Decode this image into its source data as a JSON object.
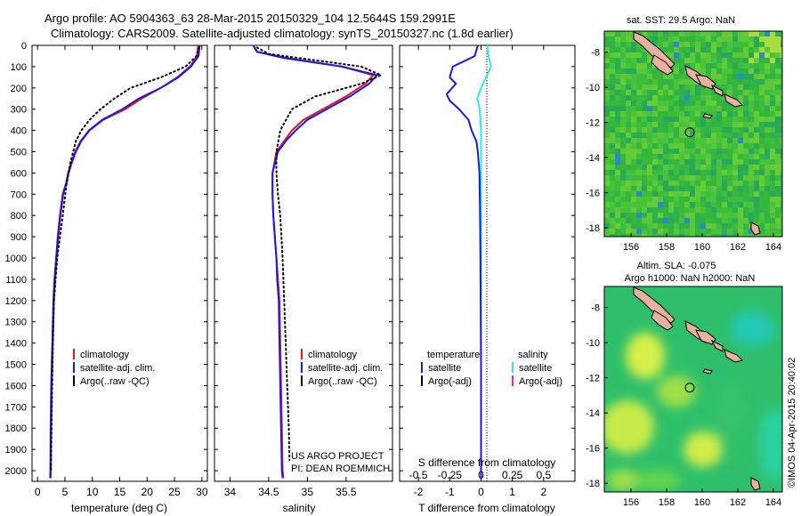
{
  "header": {
    "line1": "Argo profile: AO 5904363_63 28-Mar-2015 20150329_104 12.5644S 159.2991E",
    "line2": "Climatology: CARS2009. Satellite-adjusted climatology: synTS_20150327.nc (1.8d earlier)"
  },
  "credit": {
    "project": "US ARGO PROJECT",
    "pi": "PI: DEAN ROEMMICH",
    "imos": "©IMOS 04-Apr-2015 20:40:02"
  },
  "colors": {
    "climatology": "#e8151b",
    "satellite": "#1a1ae0",
    "argo": "#000000",
    "salinity_satellite": "#33e8e8",
    "salinity_argo": "#e020e0",
    "land": "#e8b0a0"
  },
  "chart_data": [
    {
      "type": "line",
      "id": "temperature",
      "title": "",
      "xlabel": "temperature (deg C)",
      "ylabel": "",
      "xlim": [
        -1,
        31
      ],
      "ylim": [
        2050,
        0
      ],
      "xticks": [
        "0",
        "5",
        "10",
        "15",
        "20",
        "25",
        "30"
      ],
      "yticks": [
        "0",
        "100",
        "200",
        "300",
        "400",
        "500",
        "600",
        "700",
        "800",
        "900",
        "1000",
        "1100",
        "1200",
        "1300",
        "1400",
        "1500",
        "1600",
        "1700",
        "1800",
        "1900",
        "2000"
      ],
      "legend": {
        "position": "bottom-left",
        "entries": [
          "climatology",
          "satellite-adj. clim.",
          "Argo(..raw -QC)"
        ]
      },
      "series": [
        {
          "name": "climatology",
          "x": [
            29.3,
            29.1,
            27.8,
            25.5,
            22.5,
            19,
            16,
            12,
            9.5,
            8,
            7,
            6.3,
            5.7,
            5.3,
            4.7,
            4.2,
            3.8,
            3.5,
            3.2,
            3,
            2.8,
            2.6,
            2.5,
            2.45,
            2.4
          ],
          "y": [
            0,
            50,
            100,
            150,
            200,
            250,
            300,
            350,
            400,
            450,
            500,
            550,
            600,
            650,
            700,
            800,
            900,
            1000,
            1100,
            1200,
            1400,
            1600,
            1800,
            2000,
            2035
          ]
        },
        {
          "name": "satellite-adj. clim.",
          "x": [
            29.6,
            29.4,
            28,
            25.7,
            22.5,
            18.5,
            15.5,
            11.8,
            9.4,
            7.9,
            6.9,
            6.2,
            5.6,
            5.2,
            4.6,
            4.1,
            3.7,
            3.4,
            3.1,
            2.9,
            2.7,
            2.5,
            2.4,
            2.35,
            2.3
          ],
          "y": [
            0,
            50,
            100,
            150,
            200,
            250,
            300,
            350,
            400,
            450,
            500,
            550,
            600,
            650,
            700,
            800,
            900,
            1000,
            1100,
            1200,
            1400,
            1600,
            1800,
            2000,
            2035
          ]
        },
        {
          "name": "Argo(..raw -QC)",
          "style": "dotted",
          "x": [
            29.5,
            29,
            27,
            22.5,
            17,
            14,
            11.5,
            9.5,
            8,
            7,
            6,
            5.3,
            4.6,
            4.1,
            3.6,
            3.3,
            3,
            2.8,
            2.6,
            2.45
          ],
          "y": [
            10,
            50,
            100,
            150,
            200,
            250,
            300,
            350,
            400,
            450,
            550,
            650,
            800,
            900,
            1000,
            1100,
            1200,
            1400,
            1700,
            2000
          ]
        }
      ]
    },
    {
      "type": "line",
      "id": "salinity",
      "title": "",
      "xlabel": "salinity",
      "ylabel": "",
      "xlim": [
        33.8,
        36.1
      ],
      "ylim": [
        2050,
        0
      ],
      "xticks": [
        "34",
        "34.5",
        "35",
        "35.5"
      ],
      "legend": {
        "position": "bottom-left",
        "entries": [
          "climatology",
          "satellite-adj. clim.",
          "Argo(..raw -QC)"
        ]
      },
      "series": [
        {
          "name": "climatology",
          "x": [
            34.3,
            34.35,
            34.75,
            35.45,
            35.85,
            35.75,
            35.5,
            35.2,
            34.95,
            34.8,
            34.7,
            34.6,
            34.55,
            34.55,
            34.56,
            34.58,
            34.6,
            34.62,
            34.64,
            34.65,
            34.66,
            34.67,
            34.68,
            34.69
          ],
          "y": [
            0,
            30,
            60,
            100,
            140,
            180,
            240,
            300,
            350,
            400,
            450,
            500,
            600,
            700,
            800,
            900,
            1000,
            1100,
            1200,
            1400,
            1600,
            1800,
            2000,
            2035
          ]
        },
        {
          "name": "satellite-adj. clim.",
          "x": [
            34.3,
            34.35,
            34.7,
            35.45,
            35.9,
            35.8,
            35.55,
            35.25,
            35,
            34.85,
            34.72,
            34.62,
            34.55,
            34.55,
            34.56,
            34.58,
            34.6,
            34.61,
            34.63,
            34.64,
            34.65,
            34.66,
            34.67,
            34.68
          ],
          "y": [
            0,
            30,
            60,
            100,
            140,
            180,
            240,
            300,
            350,
            400,
            450,
            500,
            600,
            700,
            800,
            900,
            1000,
            1100,
            1200,
            1400,
            1600,
            1800,
            2000,
            2035
          ]
        },
        {
          "name": "Argo(..raw -QC)",
          "style": "dotted",
          "x": [
            34.35,
            34.5,
            35.1,
            35.7,
            35.95,
            35.7,
            35.1,
            34.8,
            34.65,
            34.6,
            34.6,
            34.62,
            34.65,
            34.68,
            34.7,
            34.72,
            34.74,
            34.76,
            34.77
          ],
          "y": [
            10,
            40,
            70,
            100,
            140,
            180,
            240,
            300,
            400,
            500,
            600,
            700,
            800,
            1000,
            1200,
            1400,
            1600,
            1800,
            1950
          ]
        }
      ]
    },
    {
      "type": "line",
      "id": "difference",
      "title": "",
      "xlabel": "T difference from climatology",
      "x2label": "S difference from climatology",
      "ylabel": "",
      "xlim": [
        -2.6,
        3
      ],
      "ylim": [
        2050,
        0
      ],
      "xticks": [
        "-2",
        "-1",
        "0",
        "1",
        "2"
      ],
      "x2ticks": [
        "-0.5",
        "-0.25",
        "0",
        "0.25",
        "0.5"
      ],
      "legend_temperature": {
        "title": "temperature",
        "entries": [
          "satellite",
          "Argo(-adj)"
        ]
      },
      "legend_salinity": {
        "title": "salinity",
        "entries": [
          "satellite",
          "Argo(-adj)"
        ]
      },
      "series": [
        {
          "name": "temperature satellite",
          "x": [
            -0.1,
            -0.2,
            -0.9,
            -1.0,
            -0.8,
            -1.1,
            -1.0,
            -0.7,
            -0.4,
            -0.3,
            -0.15,
            -0.1,
            -0.05,
            -0.03,
            -0.02,
            0,
            0
          ],
          "y": [
            0,
            50,
            100,
            150,
            180,
            230,
            260,
            300,
            350,
            400,
            450,
            500,
            600,
            800,
            1000,
            1500,
            2035
          ]
        },
        {
          "name": "salinity satellite",
          "x2": [
            0.05,
            0.06,
            0.08,
            0.04,
            0.0,
            -0.03,
            -0.01,
            0.0,
            0.0,
            0.0,
            0.0
          ],
          "y": [
            0,
            50,
            100,
            150,
            200,
            250,
            300,
            400,
            600,
            1000,
            2035
          ]
        }
      ]
    },
    {
      "type": "heatmap",
      "id": "map-sst",
      "title": "sat. SST: 29.5 Argo: NaN",
      "xticks": [
        "156",
        "158",
        "160",
        "162",
        "164"
      ],
      "yticks": [
        "-8",
        "-10",
        "-12",
        "-14",
        "-16",
        "-18"
      ],
      "xlim": [
        154.5,
        164.5
      ],
      "ylim": [
        -18.5,
        -6.8
      ],
      "marker": {
        "lon": 159.3,
        "lat": -12.56
      }
    },
    {
      "type": "heatmap",
      "id": "map-sla",
      "title": "Altim. SLA: -0.075",
      "subtitle": "Argo h1000: NaN h2000: NaN",
      "xticks": [
        "156",
        "158",
        "160",
        "162",
        "164"
      ],
      "yticks": [
        "-8",
        "-10",
        "-12",
        "-14",
        "-16",
        "-18"
      ],
      "xlim": [
        154.5,
        164.5
      ],
      "ylim": [
        -18.5,
        -6.8
      ],
      "marker": {
        "lon": 159.3,
        "lat": -12.56
      }
    }
  ]
}
